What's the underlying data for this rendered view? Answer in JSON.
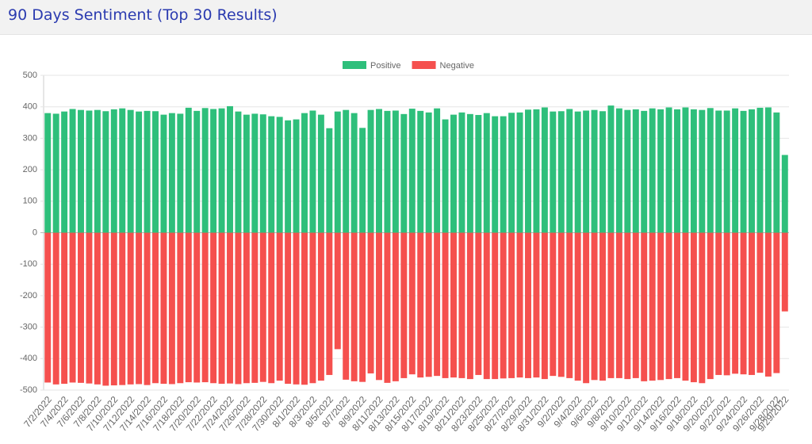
{
  "chart_data": {
    "type": "bar",
    "stacked": true,
    "title": "90 Days Sentiment (Top 30 Results)",
    "categories": [
      "7/2/2022",
      null,
      "7/4/2022",
      null,
      "7/6/2022",
      null,
      "7/8/2022",
      null,
      "7/10/2022",
      null,
      "7/12/2022",
      null,
      "7/14/2022",
      null,
      "7/16/2022",
      null,
      "7/18/2022",
      null,
      "7/20/2022",
      null,
      "7/22/2022",
      null,
      "7/24/2022",
      null,
      "7/26/2022",
      null,
      "7/28/2022",
      null,
      "7/30/2022",
      null,
      "8/1/2022",
      null,
      "8/3/2022",
      null,
      "8/5/2022",
      null,
      "8/7/2022",
      null,
      "8/9/2022",
      null,
      "8/11/2022",
      null,
      "8/13/2022",
      null,
      "8/15/2022",
      null,
      "8/17/2022",
      null,
      "8/19/2022",
      null,
      "8/21/2022",
      null,
      "8/23/2022",
      null,
      "8/25/2022",
      null,
      "8/27/2022",
      null,
      "8/29/2022",
      null,
      "8/31/2022",
      null,
      "9/2/2022",
      null,
      "9/4/2022",
      null,
      "9/6/2022",
      null,
      "9/8/2022",
      null,
      "9/10/2022",
      null,
      "9/12/2022",
      null,
      "9/14/2022",
      null,
      "9/16/2022",
      null,
      "9/18/2022",
      null,
      "9/20/2022",
      null,
      "9/22/2022",
      null,
      "9/24/2022",
      null,
      "9/26/2022",
      null,
      "9/28/2022",
      "9/29/2022"
    ],
    "series": [
      {
        "name": "Positive",
        "color": "#2ebf7b",
        "values": [
          380,
          378,
          385,
          393,
          390,
          388,
          390,
          386,
          392,
          395,
          390,
          385,
          387,
          386,
          375,
          380,
          378,
          397,
          387,
          396,
          393,
          395,
          402,
          385,
          375,
          378,
          376,
          370,
          368,
          357,
          360,
          380,
          388,
          375,
          332,
          385,
          390,
          380,
          333,
          390,
          393,
          387,
          388,
          377,
          394,
          387,
          382,
          395,
          360,
          375,
          382,
          377,
          374,
          380,
          370,
          370,
          381,
          382,
          391,
          392,
          398,
          385,
          386,
          393,
          385,
          388,
          390,
          386,
          404,
          395,
          390,
          392,
          387,
          395,
          392,
          398,
          392,
          398,
          392,
          390,
          396,
          388,
          388,
          395,
          387,
          392,
          397,
          398,
          382,
          247
        ]
      },
      {
        "name": "Negative",
        "color": "#f5504e",
        "values": [
          -476,
          -482,
          -480,
          -476,
          -477,
          -479,
          -482,
          -486,
          -485,
          -484,
          -482,
          -481,
          -484,
          -478,
          -480,
          -481,
          -478,
          -475,
          -476,
          -475,
          -478,
          -480,
          -479,
          -481,
          -478,
          -477,
          -474,
          -478,
          -470,
          -480,
          -482,
          -483,
          -478,
          -470,
          -452,
          -370,
          -467,
          -472,
          -474,
          -447,
          -468,
          -477,
          -472,
          -462,
          -450,
          -460,
          -458,
          -455,
          -462,
          -460,
          -462,
          -465,
          -452,
          -465,
          -465,
          -463,
          -462,
          -460,
          -462,
          -460,
          -465,
          -455,
          -458,
          -462,
          -470,
          -478,
          -468,
          -470,
          -462,
          -462,
          -465,
          -462,
          -472,
          -470,
          -468,
          -465,
          -462,
          -470,
          -475,
          -478,
          -465,
          -452,
          -453,
          -448,
          -450,
          -452,
          -445,
          -457,
          -446,
          -250
        ]
      }
    ],
    "ylim": [
      -500,
      500
    ],
    "yticks": [
      -500,
      -400,
      -300,
      -200,
      -100,
      0,
      100,
      200,
      300,
      400,
      500
    ],
    "grid": true,
    "legend": "top"
  }
}
